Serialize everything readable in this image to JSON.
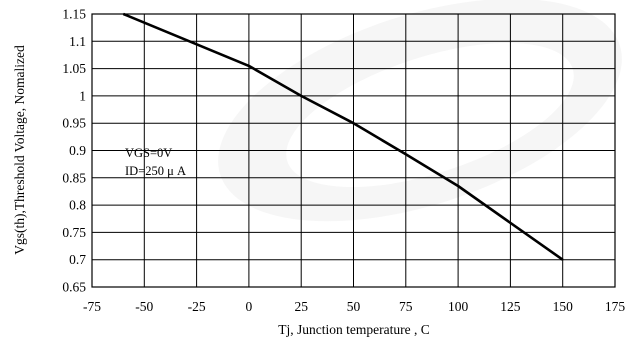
{
  "chart_data": {
    "type": "line",
    "xlabel": "Tj, Junction temperature , C",
    "ylabel": "Vgs(th),Threshold Voltage, Nomalized",
    "xlim": [
      -75,
      175
    ],
    "ylim": [
      0.65,
      1.15
    ],
    "x_ticks": [
      -75,
      -50,
      -25,
      0,
      25,
      50,
      75,
      100,
      125,
      150,
      175
    ],
    "y_ticks": [
      0.65,
      0.7,
      0.75,
      0.8,
      0.85,
      0.9,
      0.95,
      1,
      1.05,
      1.1,
      1.15
    ],
    "x_tick_labels": [
      "-75",
      "-50",
      "-25",
      "0",
      "25",
      "50",
      "75",
      "100",
      "125",
      "150",
      "175"
    ],
    "y_tick_labels": [
      "0.65",
      "0.7",
      "0.75",
      "0.8",
      "0.85",
      "0.9",
      "0.95",
      "1",
      "1.05",
      "1.1",
      "1.15"
    ],
    "grid": true,
    "annotations": [
      "VGS=0V",
      "ID=250 μ A"
    ],
    "series": [
      {
        "x": [
          -60,
          0,
          25,
          50,
          75,
          100,
          150
        ],
        "y": [
          1.15,
          1.055,
          1.0,
          0.95,
          0.893,
          0.835,
          0.7
        ]
      }
    ]
  }
}
